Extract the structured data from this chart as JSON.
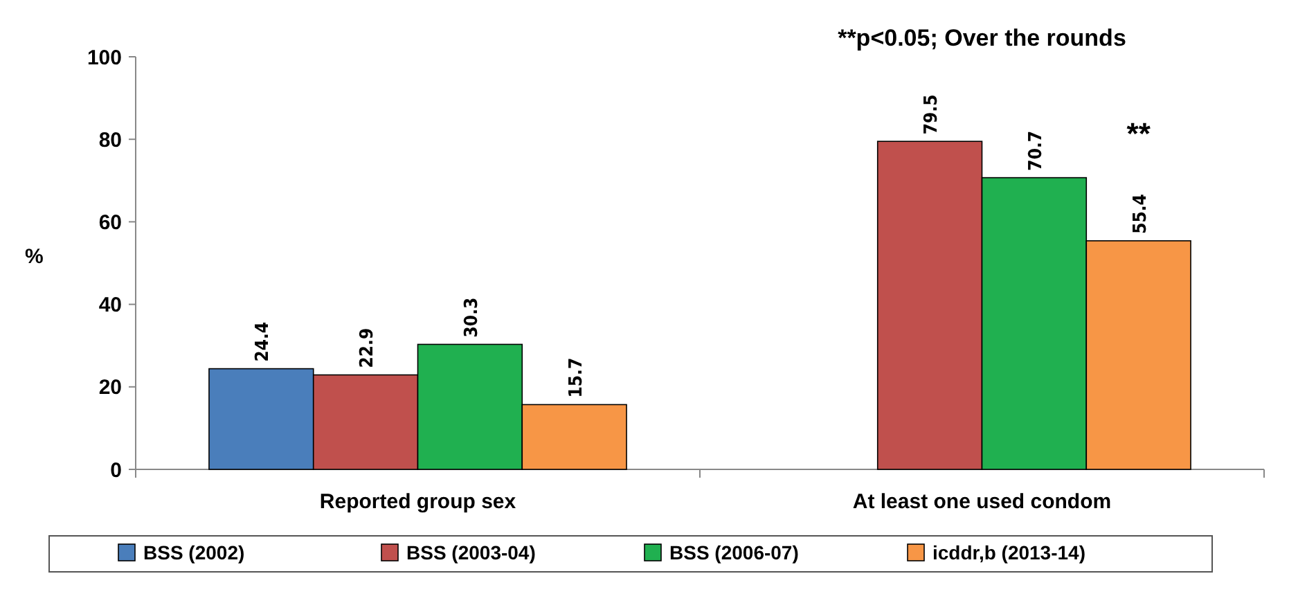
{
  "chart_data": {
    "type": "bar",
    "ylabel": "%",
    "categories": [
      "Reported group sex",
      "At least one used condom"
    ],
    "series": [
      {
        "name": "BSS (2002)",
        "color": "#4a7ebb",
        "values": [
          24.4,
          null
        ]
      },
      {
        "name": "BSS (2003-04)",
        "color": "#c0504d",
        "values": [
          22.9,
          79.5
        ]
      },
      {
        "name": "BSS (2006-07)",
        "color": "#20b050",
        "values": [
          30.3,
          70.7
        ]
      },
      {
        "name": "icddr,b (2013-14)",
        "color": "#f79646",
        "values": [
          15.7,
          55.4
        ]
      }
    ],
    "ylim": [
      0,
      100
    ],
    "yticks": [
      0,
      20,
      40,
      60,
      80,
      100
    ],
    "data_labels": true,
    "legend": "bottom",
    "grid": false,
    "annotations": [
      "**p<0.05; Over the rounds",
      "**"
    ]
  }
}
